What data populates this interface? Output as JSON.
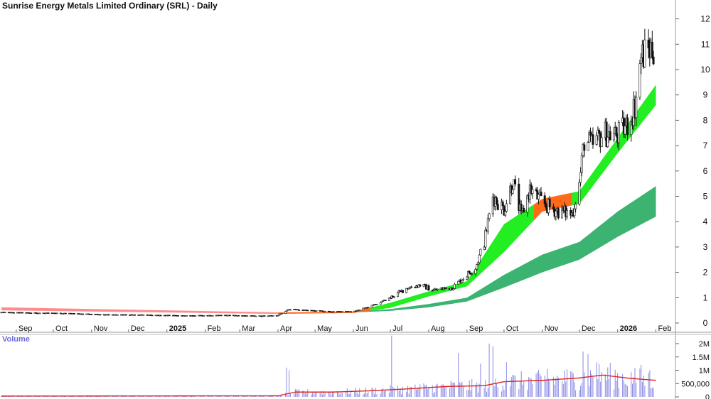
{
  "chart_data": [
    {
      "type": "candlestick",
      "title": "Sunrise Energy Metals Limited Ordinary (SRL) - Daily",
      "y_ticks": [
        0,
        1,
        2,
        3,
        4,
        5,
        6,
        7,
        8,
        9,
        10,
        11,
        12
      ],
      "ylim": [
        0,
        12.6
      ],
      "x_tick_labels": [
        "Sep",
        "Oct",
        "Nov",
        "Dec",
        "2025",
        "Feb",
        "Mar",
        "Apr",
        "May",
        "Jun",
        "Jul",
        "Aug",
        "Sep",
        "Oct",
        "Nov",
        "Dec",
        "2026",
        "Feb"
      ],
      "price_path": [
        [
          "2024-08-20",
          0.42
        ],
        [
          "2024-09-15",
          0.4
        ],
        [
          "2024-10-15",
          0.38
        ],
        [
          "2024-11-15",
          0.33
        ],
        [
          "2024-12-15",
          0.32
        ],
        [
          "2025-01-15",
          0.29
        ],
        [
          "2025-02-15",
          0.31
        ],
        [
          "2025-03-15",
          0.28
        ],
        [
          "2025-04-01",
          0.3
        ],
        [
          "2025-04-10",
          0.55
        ],
        [
          "2025-04-25",
          0.5
        ],
        [
          "2025-05-15",
          0.45
        ],
        [
          "2025-06-01",
          0.45
        ],
        [
          "2025-06-20",
          0.75
        ],
        [
          "2025-07-01",
          1.0
        ],
        [
          "2025-07-15",
          1.4
        ],
        [
          "2025-07-25",
          1.5
        ],
        [
          "2025-08-05",
          1.3
        ],
        [
          "2025-08-20",
          1.4
        ],
        [
          "2025-09-01",
          1.9
        ],
        [
          "2025-09-08",
          2.2
        ],
        [
          "2025-09-15",
          3.2
        ],
        [
          "2025-09-22",
          5.0
        ],
        [
          "2025-10-01",
          4.5
        ],
        [
          "2025-10-08",
          5.6
        ],
        [
          "2025-10-15",
          4.2
        ],
        [
          "2025-10-22",
          5.3
        ],
        [
          "2025-10-29",
          4.9
        ],
        [
          "2025-11-05",
          4.6
        ],
        [
          "2025-11-15",
          4.4
        ],
        [
          "2025-11-25",
          4.3
        ],
        [
          "2025-12-01",
          5.5
        ],
        [
          "2025-12-05",
          7.2
        ],
        [
          "2025-12-12",
          7.0
        ],
        [
          "2025-12-20",
          7.5
        ],
        [
          "2026-01-01",
          7.4
        ],
        [
          "2026-01-10",
          7.9
        ],
        [
          "2026-01-15",
          8.6
        ],
        [
          "2026-01-20",
          10.5
        ],
        [
          "2026-01-27",
          10.8
        ],
        [
          "2026-02-01",
          10.9
        ]
      ],
      "ribbons": [
        {
          "name": "short-term band",
          "up_color": "#22ee22",
          "down_color": "#ff6a1a",
          "early_color": "#ff8c8c",
          "upper": [
            [
              "2024-08-20",
              0.62
            ],
            [
              "2025-04-01",
              0.42
            ],
            [
              "2025-06-01",
              0.45
            ],
            [
              "2025-07-01",
              0.8
            ],
            [
              "2025-08-01",
              1.25
            ],
            [
              "2025-09-01",
              1.65
            ],
            [
              "2025-10-01",
              3.9
            ],
            [
              "2025-11-01",
              4.9
            ],
            [
              "2025-12-01",
              5.2
            ],
            [
              "2026-01-01",
              7.3
            ],
            [
              "2026-02-01",
              9.4
            ]
          ],
          "lower": [
            [
              "2024-08-20",
              0.5
            ],
            [
              "2025-04-01",
              0.36
            ],
            [
              "2025-06-01",
              0.4
            ],
            [
              "2025-07-01",
              0.6
            ],
            [
              "2025-08-01",
              1.05
            ],
            [
              "2025-09-01",
              1.45
            ],
            [
              "2025-10-01",
              2.8
            ],
            [
              "2025-11-01",
              4.4
            ],
            [
              "2025-12-01",
              4.7
            ],
            [
              "2026-01-01",
              6.7
            ],
            [
              "2026-02-01",
              8.6
            ]
          ]
        },
        {
          "name": "long-term band",
          "color": "#3cb371",
          "upper": [
            [
              "2025-05-15",
              0.4
            ],
            [
              "2025-07-01",
              0.55
            ],
            [
              "2025-08-01",
              0.75
            ],
            [
              "2025-09-01",
              1.0
            ],
            [
              "2025-10-01",
              1.9
            ],
            [
              "2025-11-01",
              2.7
            ],
            [
              "2025-12-01",
              3.2
            ],
            [
              "2026-01-01",
              4.4
            ],
            [
              "2026-02-01",
              5.4
            ]
          ],
          "lower": [
            [
              "2025-05-15",
              0.38
            ],
            [
              "2025-07-01",
              0.48
            ],
            [
              "2025-08-01",
              0.62
            ],
            [
              "2025-09-01",
              0.85
            ],
            [
              "2025-10-01",
              1.4
            ],
            [
              "2025-11-01",
              2.0
            ],
            [
              "2025-12-01",
              2.5
            ],
            [
              "2026-01-01",
              3.4
            ],
            [
              "2026-02-01",
              4.2
            ]
          ]
        }
      ]
    },
    {
      "type": "bar",
      "title": "Volume",
      "y_tick_labels": [
        "2M",
        "1.5M",
        "1M",
        "500,000",
        "0"
      ],
      "y_ticks": [
        2000000,
        1500000,
        1000000,
        500000,
        0
      ],
      "ylim": [
        0,
        2450000
      ],
      "bar_color": "#8a8ae6",
      "ma_color": "#dd2222",
      "moving_average": [
        [
          "2024-08-20",
          30000
        ],
        [
          "2025-04-01",
          40000
        ],
        [
          "2025-04-15",
          180000
        ],
        [
          "2025-05-15",
          180000
        ],
        [
          "2025-06-15",
          230000
        ],
        [
          "2025-07-15",
          300000
        ],
        [
          "2025-08-15",
          390000
        ],
        [
          "2025-09-15",
          420000
        ],
        [
          "2025-10-01",
          570000
        ],
        [
          "2025-11-01",
          620000
        ],
        [
          "2025-12-01",
          710000
        ],
        [
          "2025-12-20",
          820000
        ],
        [
          "2026-01-10",
          700000
        ],
        [
          "2026-02-01",
          620000
        ]
      ],
      "notable_bars": [
        [
          "2025-04-08",
          1100000
        ],
        [
          "2025-04-10",
          1000000
        ],
        [
          "2025-04-12",
          1050000
        ],
        [
          "2025-07-02",
          2300000
        ],
        [
          "2025-07-20",
          1500000
        ],
        [
          "2025-08-25",
          1650000
        ],
        [
          "2025-09-12",
          1250000
        ],
        [
          "2025-09-19",
          2000000
        ],
        [
          "2025-09-22",
          1900000
        ],
        [
          "2025-10-03",
          1300000
        ],
        [
          "2025-11-05",
          1050000
        ],
        [
          "2025-12-04",
          1700000
        ],
        [
          "2025-12-08",
          1600000
        ],
        [
          "2025-12-15",
          1300000
        ],
        [
          "2026-01-20",
          1200000
        ],
        [
          "2026-01-27",
          1000000
        ]
      ]
    }
  ]
}
